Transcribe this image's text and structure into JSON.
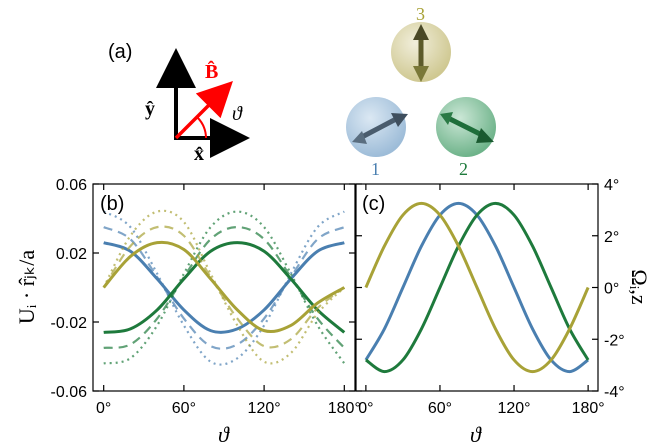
{
  "figure": {
    "panel_a_label": "(a)",
    "panel_b_label": "(b)",
    "panel_c_label": "(c)",
    "vec_B": "B̂",
    "vec_x": "x̂",
    "vec_y": "ŷ",
    "theta": "ϑ",
    "ball_labels": [
      "1",
      "2",
      "3"
    ],
    "colors": {
      "blue": "#4a7fb0",
      "green": "#1e7a3c",
      "yellow": "#a8a237",
      "red": "#ff0000",
      "ball_blue": "#a9c6de",
      "ball_green": "#7fbf99",
      "ball_yellow": "#d8d3a4"
    }
  },
  "chart_data": [
    {
      "type": "line",
      "panel": "(b)",
      "xlabel": "ϑ",
      "ylabel": "Uᵢ · r̂ⱼₖ/a",
      "xlim": [
        -8,
        188
      ],
      "ylim": [
        -0.06,
        0.06
      ],
      "xticks": [
        "0°",
        "60°",
        "120°",
        "180°"
      ],
      "xtick_values": [
        0,
        60,
        120,
        180
      ],
      "yticks": [
        "-0.06",
        "-0.02",
        "0.02",
        "0.06"
      ],
      "ytick_values": [
        -0.06,
        -0.02,
        0.02,
        0.06
      ],
      "x": [
        0,
        20,
        40,
        60,
        80,
        100,
        120,
        140,
        160,
        180
      ],
      "series": [
        {
          "color": "blue",
          "style": "solid",
          "values": [
            0.026,
            0.021,
            0.005,
            -0.013,
            -0.025,
            -0.024,
            -0.013,
            0.005,
            0.021,
            0.026
          ]
        },
        {
          "color": "blue",
          "style": "dashed",
          "values": [
            0.035,
            0.028,
            0.006,
            -0.018,
            -0.034,
            -0.033,
            -0.018,
            0.006,
            0.028,
            0.035
          ]
        },
        {
          "color": "blue",
          "style": "dotted",
          "values": [
            0.044,
            0.035,
            0.008,
            -0.022,
            -0.043,
            -0.041,
            -0.022,
            0.008,
            0.035,
            0.044
          ]
        },
        {
          "color": "green",
          "style": "solid",
          "values": [
            -0.026,
            -0.024,
            -0.013,
            0.005,
            0.021,
            0.026,
            0.021,
            0.005,
            -0.013,
            -0.026
          ]
        },
        {
          "color": "green",
          "style": "dashed",
          "values": [
            -0.035,
            -0.033,
            -0.018,
            0.006,
            0.028,
            0.035,
            0.028,
            0.006,
            -0.018,
            -0.035
          ]
        },
        {
          "color": "green",
          "style": "dotted",
          "values": [
            -0.044,
            -0.041,
            -0.022,
            0.008,
            0.035,
            0.044,
            0.035,
            0.008,
            -0.022,
            -0.044
          ]
        },
        {
          "color": "yellow",
          "style": "solid",
          "values": [
            0.0,
            0.018,
            0.026,
            0.022,
            0.005,
            -0.013,
            -0.025,
            -0.022,
            -0.009,
            0.0
          ]
        },
        {
          "color": "yellow",
          "style": "dashed",
          "values": [
            0.0,
            0.024,
            0.035,
            0.03,
            0.006,
            -0.018,
            -0.034,
            -0.03,
            -0.012,
            0.0
          ]
        },
        {
          "color": "yellow",
          "style": "dotted",
          "values": [
            0.0,
            0.03,
            0.044,
            0.038,
            0.008,
            -0.022,
            -0.043,
            -0.038,
            -0.015,
            0.0
          ]
        }
      ]
    },
    {
      "type": "line",
      "panel": "(c)",
      "xlabel": "ϑ",
      "ylabel": "Ωᵢ,z",
      "xlim": [
        -8,
        188
      ],
      "ylim": [
        -4,
        4
      ],
      "xticks": [
        "0°",
        "60°",
        "120°",
        "180°"
      ],
      "xtick_values": [
        0,
        60,
        120,
        180
      ],
      "yticks": [
        "4°",
        "2°",
        "0°",
        "-2°",
        "-4°"
      ],
      "ytick_values": [
        4,
        2,
        0,
        -2,
        -4
      ],
      "x": [
        0,
        15,
        30,
        45,
        60,
        75,
        90,
        105,
        120,
        135,
        150,
        165,
        180
      ],
      "series": [
        {
          "color": "blue",
          "style": "solid",
          "values": [
            -2.8,
            -1.6,
            0.0,
            1.6,
            2.8,
            3.25,
            2.8,
            1.6,
            0.0,
            -1.6,
            -2.8,
            -3.25,
            -2.8
          ]
        },
        {
          "color": "green",
          "style": "solid",
          "values": [
            -2.8,
            -3.25,
            -2.8,
            -1.6,
            0.0,
            1.6,
            2.8,
            3.25,
            2.8,
            1.6,
            0.0,
            -1.6,
            -2.8
          ]
        },
        {
          "color": "yellow",
          "style": "solid",
          "values": [
            0.0,
            1.6,
            2.8,
            3.25,
            2.8,
            1.6,
            0.0,
            -1.6,
            -2.8,
            -3.25,
            -2.8,
            -1.6,
            0.0
          ]
        }
      ]
    }
  ]
}
